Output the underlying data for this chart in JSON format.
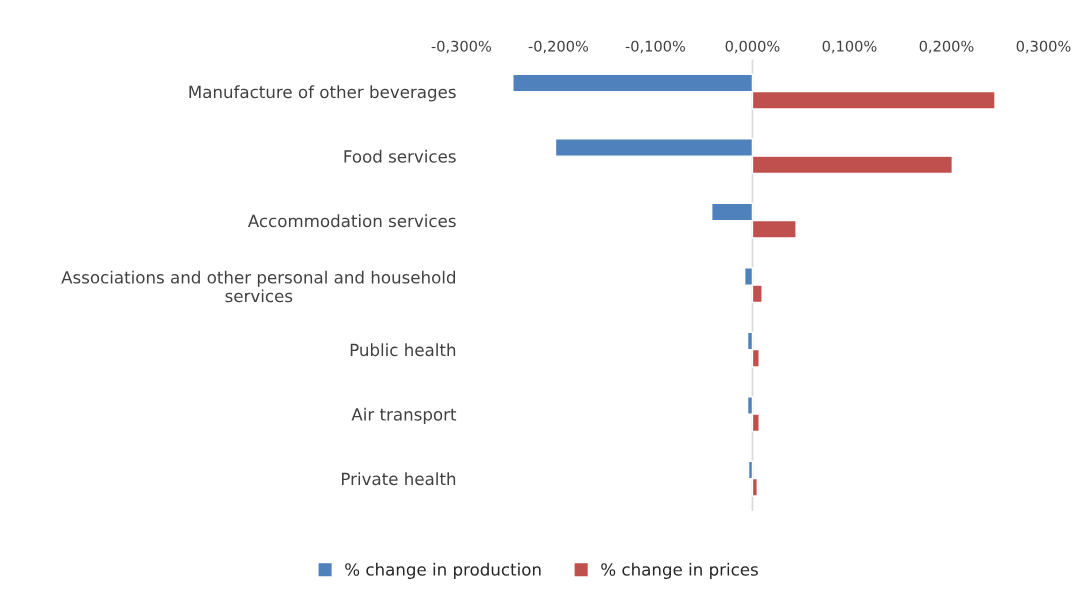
{
  "chart_data": {
    "type": "bar",
    "orientation": "horizontal",
    "categories": [
      "Manufacture of other beverages",
      "Food services",
      "Accommodation services",
      "Associations and other personal and household\nservices",
      "Public health",
      "Air transport",
      "Private health"
    ],
    "series": [
      {
        "name": "% change in production",
        "color": "#4f81bd",
        "values": [
          -0.247,
          -0.203,
          -0.042,
          -0.008,
          -0.005,
          -0.005,
          -0.004
        ]
      },
      {
        "name": "% change in prices",
        "color": "#c0504d",
        "values": [
          0.25,
          0.206,
          0.045,
          0.01,
          0.007,
          0.007,
          0.005
        ]
      }
    ],
    "xlim": [
      -0.3,
      0.3
    ],
    "xticks": [
      {
        "value": -0.3,
        "label": "-0,300%"
      },
      {
        "value": -0.2,
        "label": "-0,200%"
      },
      {
        "value": -0.1,
        "label": "-0,100%"
      },
      {
        "value": 0,
        "label": "0,000%"
      },
      {
        "value": 0.1,
        "label": "0,100%"
      },
      {
        "value": 0.2,
        "label": "0,200%"
      },
      {
        "value": 0.3,
        "label": "0,300%"
      }
    ],
    "ref_lines": [
      {
        "axis": "x",
        "value": 0,
        "color": "#d9d9d9"
      }
    ],
    "grid": false,
    "legend": "bottom"
  }
}
